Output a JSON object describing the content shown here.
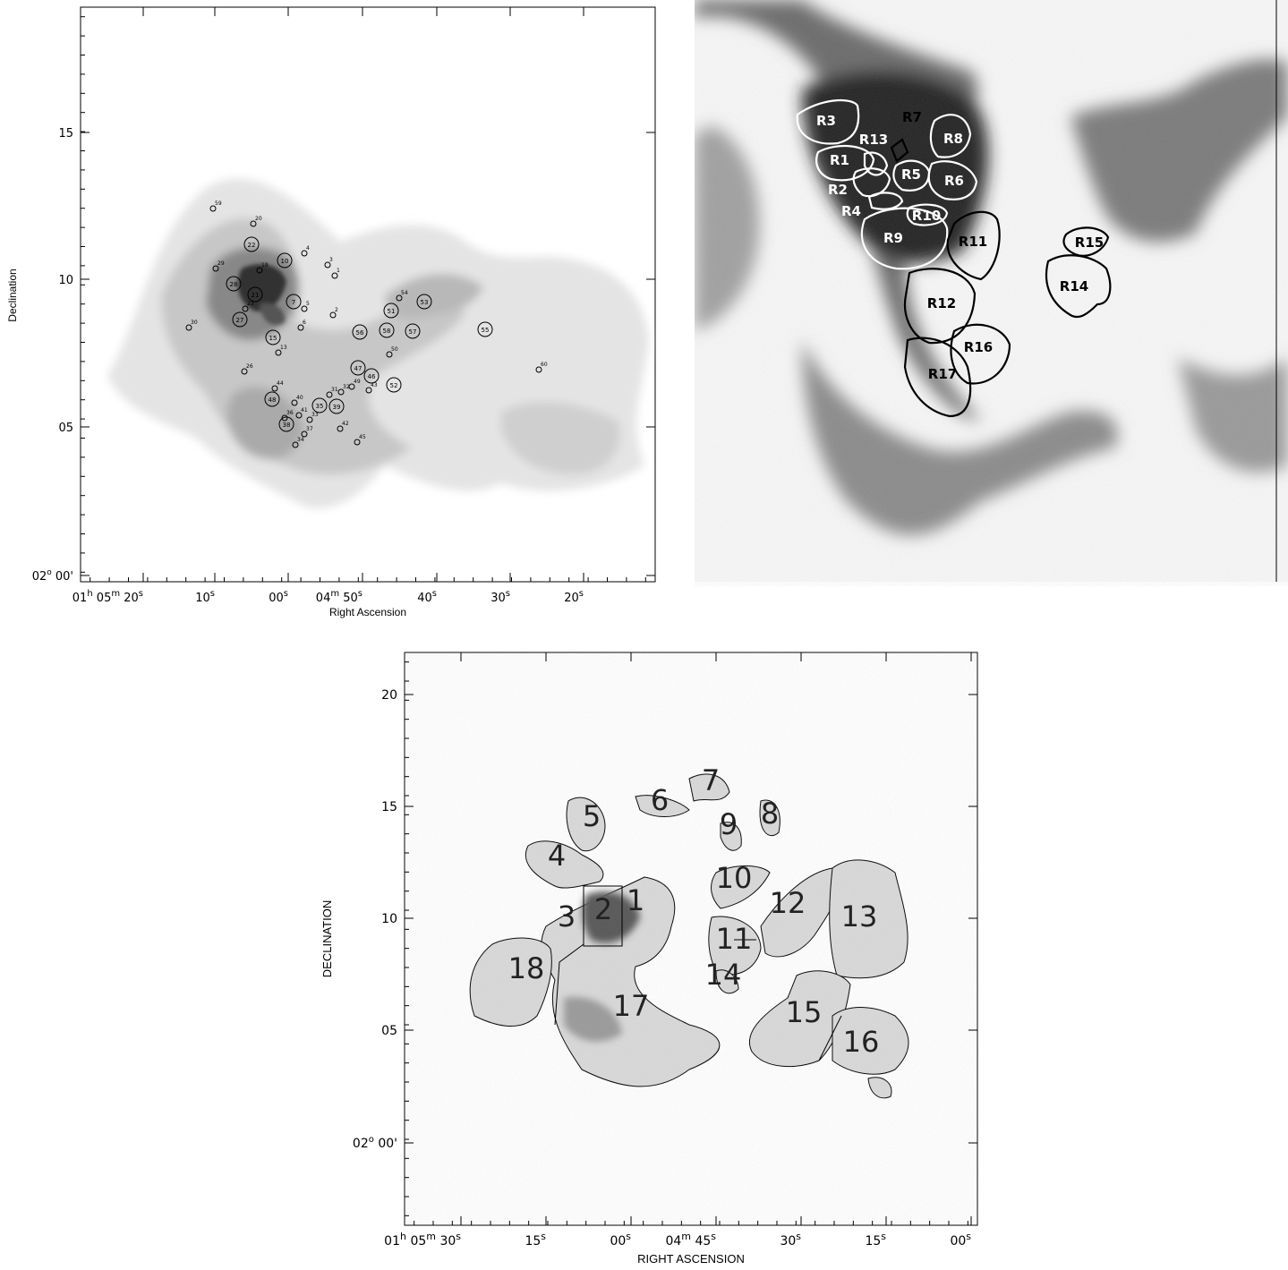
{
  "panel_a": {
    "xlabel": "Right Ascension",
    "ylabel": "Declination",
    "x_ticks": [
      {
        "hh": "01",
        "mm": "05",
        "ss": "20",
        "show_h": true,
        "show_m": true
      },
      {
        "ss": "10"
      },
      {
        "ss": "00"
      },
      {
        "mm": "04",
        "ss": "50",
        "show_m": true
      },
      {
        "ss": "40"
      },
      {
        "ss": "30"
      },
      {
        "ss": "20"
      }
    ],
    "y_ticks": [
      {
        "label": "02",
        "sup": "o",
        "tail": "00'"
      },
      {
        "label": "05"
      },
      {
        "label": "10"
      },
      {
        "label": "15"
      }
    ],
    "sources": [
      {
        "id": "59",
        "big": false
      },
      {
        "id": "20",
        "big": false
      },
      {
        "id": "22",
        "big": true
      },
      {
        "id": "4",
        "big": false
      },
      {
        "id": "10",
        "big": true
      },
      {
        "id": "3",
        "big": false
      },
      {
        "id": "29",
        "big": false
      },
      {
        "id": "19",
        "big": false
      },
      {
        "id": "28",
        "big": true
      },
      {
        "id": "1",
        "big": false
      },
      {
        "id": "21",
        "big": true
      },
      {
        "id": "7",
        "big": true
      },
      {
        "id": "23",
        "big": false
      },
      {
        "id": "2",
        "big": false
      },
      {
        "id": "27",
        "big": true
      },
      {
        "id": "5",
        "big": false
      },
      {
        "id": "6",
        "big": false
      },
      {
        "id": "15",
        "big": true
      },
      {
        "id": "13",
        "big": false
      },
      {
        "id": "30",
        "big": false
      },
      {
        "id": "54",
        "big": false
      },
      {
        "id": "53",
        "big": true
      },
      {
        "id": "51",
        "big": true
      },
      {
        "id": "56",
        "big": true
      },
      {
        "id": "58",
        "big": true
      },
      {
        "id": "57",
        "big": true
      },
      {
        "id": "55",
        "big": true
      },
      {
        "id": "50",
        "big": false
      },
      {
        "id": "47",
        "big": true
      },
      {
        "id": "46",
        "big": true
      },
      {
        "id": "52",
        "big": true
      },
      {
        "id": "60",
        "big": false
      },
      {
        "id": "26",
        "big": false
      },
      {
        "id": "44",
        "big": false
      },
      {
        "id": "48",
        "big": true
      },
      {
        "id": "40",
        "big": false
      },
      {
        "id": "31",
        "big": false
      },
      {
        "id": "32",
        "big": false
      },
      {
        "id": "49",
        "big": false
      },
      {
        "id": "43",
        "big": false
      },
      {
        "id": "36",
        "big": false
      },
      {
        "id": "41",
        "big": false
      },
      {
        "id": "35",
        "big": true
      },
      {
        "id": "39",
        "big": true
      },
      {
        "id": "33",
        "big": false
      },
      {
        "id": "38",
        "big": true
      },
      {
        "id": "37",
        "big": false
      },
      {
        "id": "42",
        "big": false
      },
      {
        "id": "34",
        "big": false
      },
      {
        "id": "45",
        "big": false
      }
    ]
  },
  "panel_b": {
    "regions": [
      {
        "id": "R3",
        "white": true
      },
      {
        "id": "R7",
        "white": false
      },
      {
        "id": "R13",
        "white": true
      },
      {
        "id": "R8",
        "white": true
      },
      {
        "id": "R1",
        "white": true
      },
      {
        "id": "R5",
        "white": true
      },
      {
        "id": "R6",
        "white": true
      },
      {
        "id": "R2",
        "white": true
      },
      {
        "id": "R4",
        "white": true
      },
      {
        "id": "R10",
        "white": true
      },
      {
        "id": "R9",
        "white": true
      },
      {
        "id": "R11",
        "white": false
      },
      {
        "id": "R15",
        "white": false
      },
      {
        "id": "R14",
        "white": false
      },
      {
        "id": "R12",
        "white": false
      },
      {
        "id": "R16",
        "white": false
      },
      {
        "id": "R17",
        "white": false
      }
    ]
  },
  "panel_c": {
    "xlabel": "RIGHT ASCENSION",
    "ylabel": "DECLINATION",
    "x_ticks": [
      {
        "hh": "01",
        "mm": "05",
        "ss": "30",
        "show_h": true,
        "show_m": true
      },
      {
        "ss": "15"
      },
      {
        "ss": "00"
      },
      {
        "mm": "04",
        "ss": "45",
        "show_m": true
      },
      {
        "ss": "30"
      },
      {
        "ss": "15"
      },
      {
        "ss": "00"
      }
    ],
    "y_ticks": [
      {
        "label": "02",
        "sup": "o",
        "tail": "00'"
      },
      {
        "label": "05"
      },
      {
        "label": "10"
      },
      {
        "label": "15"
      },
      {
        "label": "20"
      }
    ],
    "regions": [
      "1",
      "2",
      "3",
      "4",
      "5",
      "6",
      "7",
      "8",
      "9",
      "10",
      "11",
      "12",
      "13",
      "14",
      "15",
      "16",
      "17",
      "18"
    ]
  }
}
